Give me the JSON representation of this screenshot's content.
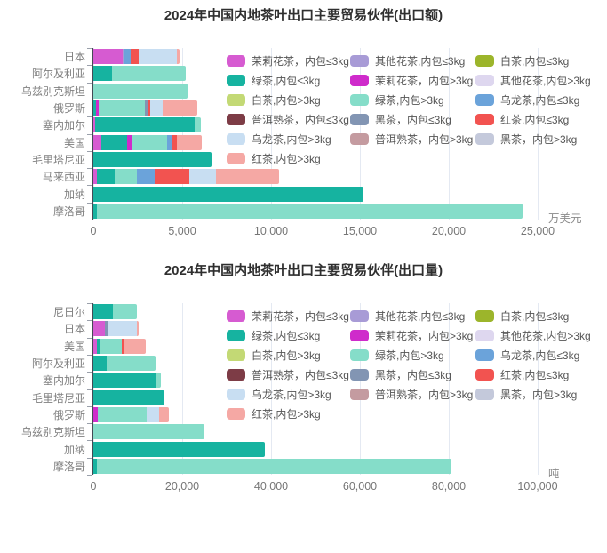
{
  "colors": {
    "jasmine_s": "#d65bd1",
    "floral_s": "#a89bd6",
    "white_s": "#9cb52b",
    "green_s": "#16b3a0",
    "jasmine_l": "#cf2bcb",
    "floral_l": "#ded7ef",
    "white_l": "#c3d975",
    "green_l": "#85ddc9",
    "oolong_s": "#6ba3da",
    "puer_s": "#7d3c46",
    "dark_s": "#8295b3",
    "red_s": "#f25350",
    "oolong_l": "#c8def2",
    "puer_l": "#c49ba0",
    "dark_l": "#c4c9db",
    "red_l": "#f5a8a4"
  },
  "legend": {
    "items": [
      {
        "id": "jasmine_s",
        "label": "茉莉花茶，内包≤3kg"
      },
      {
        "id": "floral_s",
        "label": "其他花茶,内包≤3kg"
      },
      {
        "id": "white_s",
        "label": "白茶,内包≤3kg"
      },
      {
        "id": "green_s",
        "label": "绿茶,内包≤3kg"
      },
      {
        "id": "jasmine_l",
        "label": "茉莉花茶，内包>3kg"
      },
      {
        "id": "floral_l",
        "label": "其他花茶,内包>3kg"
      },
      {
        "id": "white_l",
        "label": "白茶,内包>3kg"
      },
      {
        "id": "green_l",
        "label": "绿茶,内包>3kg"
      },
      {
        "id": "oolong_s",
        "label": "乌龙茶,内包≤3kg"
      },
      {
        "id": "puer_s",
        "label": "普洱熟茶，内包≤3kg"
      },
      {
        "id": "dark_s",
        "label": "黑茶，内包≤3kg"
      },
      {
        "id": "red_s",
        "label": "红茶,内包≤3kg"
      },
      {
        "id": "oolong_l",
        "label": "乌龙茶,内包>3kg"
      },
      {
        "id": "puer_l",
        "label": "普洱熟茶，内包>3kg"
      },
      {
        "id": "dark_l",
        "label": "黑茶，内包>3kg"
      },
      {
        "id": "red_l",
        "label": "红茶,内包>3kg"
      }
    ]
  },
  "chart_data": [
    {
      "type": "bar",
      "orientation": "horizontal-stacked",
      "title": "2024年中国内地茶叶出口主要贸易伙伴(出口额)",
      "unit": "万美元",
      "xlim": [
        0,
        25000
      ],
      "xmax": 25000,
      "xticks": [
        "0",
        "5,000",
        "10,000",
        "15,000",
        "20,000",
        "25,000"
      ],
      "grid": "vertical-major",
      "legend_position": "inside-top-right",
      "categories": [
        "日本",
        "阿尔及利亚",
        "乌兹别克斯坦",
        "俄罗斯",
        "塞内加尔",
        "美国",
        "毛里塔尼亚",
        "马来西亚",
        "加纳",
        "摩洛哥"
      ],
      "bars": [
        {
          "name": "日本",
          "total": 4870,
          "segments": [
            {
              "type": "jasmine_s",
              "value": 1650
            },
            {
              "type": "floral_s",
              "value": 120
            },
            {
              "type": "oolong_s",
              "value": 350
            },
            {
              "type": "red_s",
              "value": 450
            },
            {
              "type": "oolong_l",
              "value": 2150
            },
            {
              "type": "red_l",
              "value": 150
            }
          ]
        },
        {
          "name": "阿尔及利亚",
          "total": 5200,
          "segments": [
            {
              "type": "green_s",
              "value": 1050
            },
            {
              "type": "green_l",
              "value": 4150
            }
          ]
        },
        {
          "name": "乌兹别克斯坦",
          "total": 5300,
          "segments": [
            {
              "type": "green_l",
              "value": 5300
            }
          ]
        },
        {
          "name": "俄罗斯",
          "total": 5850,
          "segments": [
            {
              "type": "green_s",
              "value": 160
            },
            {
              "type": "jasmine_l",
              "value": 150
            },
            {
              "type": "green_l",
              "value": 2600
            },
            {
              "type": "dark_s",
              "value": 140
            },
            {
              "type": "red_s",
              "value": 150
            },
            {
              "type": "oolong_l",
              "value": 700
            },
            {
              "type": "red_l",
              "value": 1950
            }
          ]
        },
        {
          "name": "塞内加尔",
          "total": 6050,
          "segments": [
            {
              "type": "jasmine_s",
              "value": 100
            },
            {
              "type": "green_s",
              "value": 5600
            },
            {
              "type": "green_l",
              "value": 350
            }
          ]
        },
        {
          "name": "美国",
          "total": 6100,
          "segments": [
            {
              "type": "jasmine_s",
              "value": 450
            },
            {
              "type": "green_s",
              "value": 1450
            },
            {
              "type": "jasmine_l",
              "value": 250
            },
            {
              "type": "green_l",
              "value": 2000
            },
            {
              "type": "oolong_s",
              "value": 300
            },
            {
              "type": "red_s",
              "value": 250
            },
            {
              "type": "red_l",
              "value": 1400
            }
          ]
        },
        {
          "name": "毛里塔尼亚",
          "total": 6650,
          "segments": [
            {
              "type": "green_s",
              "value": 6650
            }
          ]
        },
        {
          "name": "马来西亚",
          "total": 10450,
          "segments": [
            {
              "type": "jasmine_s",
              "value": 200
            },
            {
              "type": "green_s",
              "value": 1000
            },
            {
              "type": "green_l",
              "value": 1250
            },
            {
              "type": "oolong_s",
              "value": 1000
            },
            {
              "type": "red_s",
              "value": 1950
            },
            {
              "type": "oolong_l",
              "value": 1500
            },
            {
              "type": "red_l",
              "value": 3550
            }
          ]
        },
        {
          "name": "加纳",
          "total": 15200,
          "segments": [
            {
              "type": "green_s",
              "value": 15200
            }
          ]
        },
        {
          "name": "摩洛哥",
          "total": 24150,
          "segments": [
            {
              "type": "green_s",
              "value": 200
            },
            {
              "type": "green_l",
              "value": 23950
            }
          ]
        }
      ]
    },
    {
      "type": "bar",
      "orientation": "horizontal-stacked",
      "title": "2024年中国内地茶叶出口主要贸易伙伴(出口量)",
      "unit": "吨",
      "xlim": [
        0,
        100000
      ],
      "xmax": 100000,
      "xticks": [
        "0",
        "20,000",
        "40,000",
        "60,000",
        "80,000",
        "100,000"
      ],
      "grid": "vertical-major",
      "legend_position": "inside-top-right",
      "categories": [
        "尼日尔",
        "日本",
        "美国",
        "阿尔及利亚",
        "塞内加尔",
        "毛里塔尼亚",
        "俄罗斯",
        "乌兹别克斯坦",
        "加纳",
        "摩洛哥"
      ],
      "bars": [
        {
          "name": "尼日尔",
          "total": 9800,
          "segments": [
            {
              "type": "green_s",
              "value": 4300
            },
            {
              "type": "green_l",
              "value": 5500
            }
          ]
        },
        {
          "name": "日本",
          "total": 10200,
          "segments": [
            {
              "type": "jasmine_s",
              "value": 2600
            },
            {
              "type": "dark_s",
              "value": 900
            },
            {
              "type": "oolong_l",
              "value": 6300
            },
            {
              "type": "red_l",
              "value": 400
            }
          ]
        },
        {
          "name": "美国",
          "total": 11800,
          "segments": [
            {
              "type": "jasmine_s",
              "value": 900
            },
            {
              "type": "green_s",
              "value": 800
            },
            {
              "type": "green_l",
              "value": 4700
            },
            {
              "type": "red_s",
              "value": 400
            },
            {
              "type": "red_l",
              "value": 5000
            }
          ]
        },
        {
          "name": "阿尔及利亚",
          "total": 14000,
          "segments": [
            {
              "type": "green_s",
              "value": 2900
            },
            {
              "type": "green_l",
              "value": 11100
            }
          ]
        },
        {
          "name": "塞内加尔",
          "total": 15200,
          "segments": [
            {
              "type": "green_s",
              "value": 14200
            },
            {
              "type": "green_l",
              "value": 1000
            }
          ]
        },
        {
          "name": "毛里塔尼亚",
          "total": 16000,
          "segments": [
            {
              "type": "green_s",
              "value": 16000
            }
          ]
        },
        {
          "name": "俄罗斯",
          "total": 16900,
          "segments": [
            {
              "type": "jasmine_l",
              "value": 1000
            },
            {
              "type": "green_l",
              "value": 11000
            },
            {
              "type": "oolong_l",
              "value": 2800
            },
            {
              "type": "red_l",
              "value": 2100
            }
          ]
        },
        {
          "name": "乌兹别克斯坦",
          "total": 25000,
          "segments": [
            {
              "type": "green_l",
              "value": 25000
            }
          ]
        },
        {
          "name": "加纳",
          "total": 38500,
          "segments": [
            {
              "type": "green_s",
              "value": 38500
            }
          ]
        },
        {
          "name": "摩洛哥",
          "total": 80500,
          "segments": [
            {
              "type": "green_s",
              "value": 800
            },
            {
              "type": "green_l",
              "value": 79700
            }
          ]
        }
      ]
    }
  ]
}
